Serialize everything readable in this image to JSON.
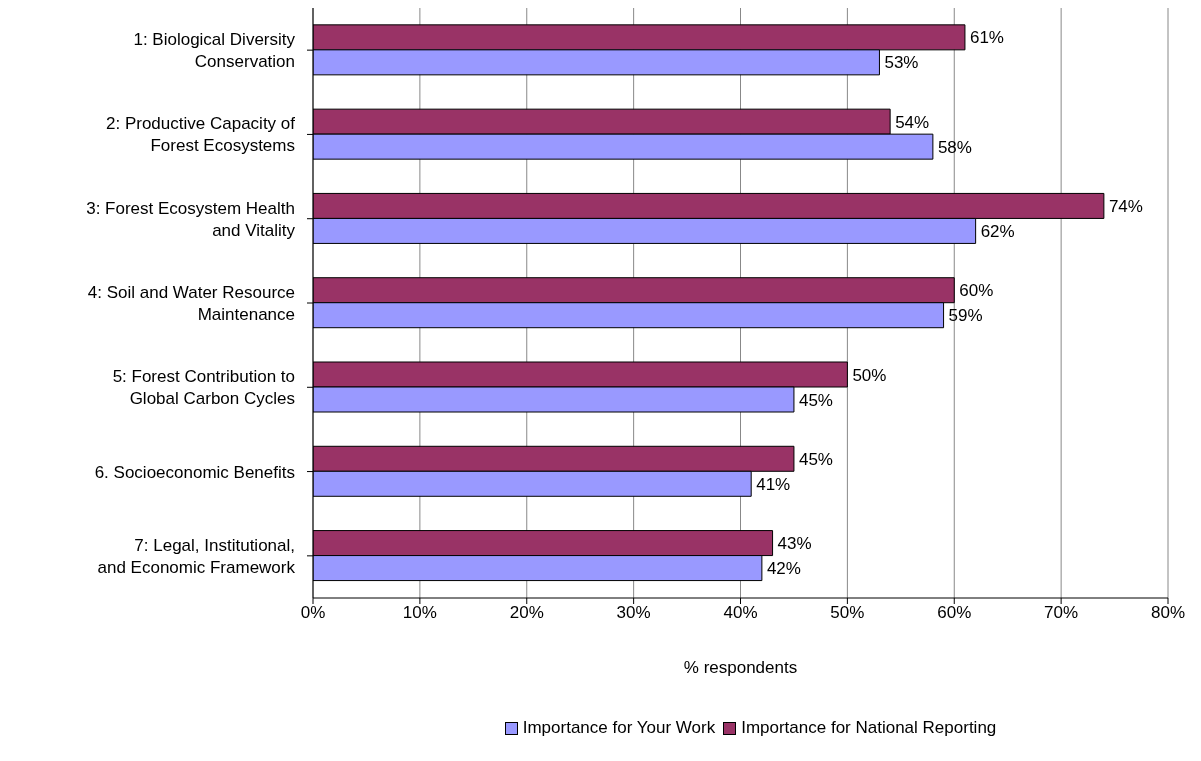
{
  "chart_data": {
    "type": "bar",
    "orientation": "horizontal",
    "xlabel": "% respondents",
    "categories": [
      "1: Biological Diversity Conservation",
      "2: Productive Capacity of Forest Ecosystems",
      "3: Forest Ecosystem Health and Vitality",
      "4: Soil and Water Resource Maintenance",
      "5: Forest Contribution to Global Carbon Cycles",
      "6. Socioeconomic Benefits",
      "7: Legal, Institutional, and Economic Framework"
    ],
    "series": [
      {
        "name": "Importance for Your Work",
        "color": "#9999ff",
        "values": [
          53,
          58,
          62,
          59,
          45,
          41,
          42
        ],
        "value_labels": [
          "53%",
          "58%",
          "62%",
          "59%",
          "45%",
          "41%",
          "42%"
        ]
      },
      {
        "name": "Importance for National Reporting",
        "color": "#993366",
        "values": [
          61,
          54,
          74,
          60,
          50,
          45,
          43
        ],
        "value_labels": [
          "61%",
          "54%",
          "74%",
          "60%",
          "50%",
          "45%",
          "43%"
        ]
      }
    ],
    "xlim": [
      0,
      80
    ],
    "xticks": [
      {
        "value": 0,
        "label": "0%"
      },
      {
        "value": 10,
        "label": "10%"
      },
      {
        "value": 20,
        "label": "20%"
      },
      {
        "value": 30,
        "label": "30%"
      },
      {
        "value": 40,
        "label": "40%"
      },
      {
        "value": 50,
        "label": "50%"
      },
      {
        "value": 60,
        "label": "60%"
      },
      {
        "value": 70,
        "label": "70%"
      },
      {
        "value": 80,
        "label": "80%"
      }
    ],
    "grid": "x",
    "legend": "bottom"
  }
}
